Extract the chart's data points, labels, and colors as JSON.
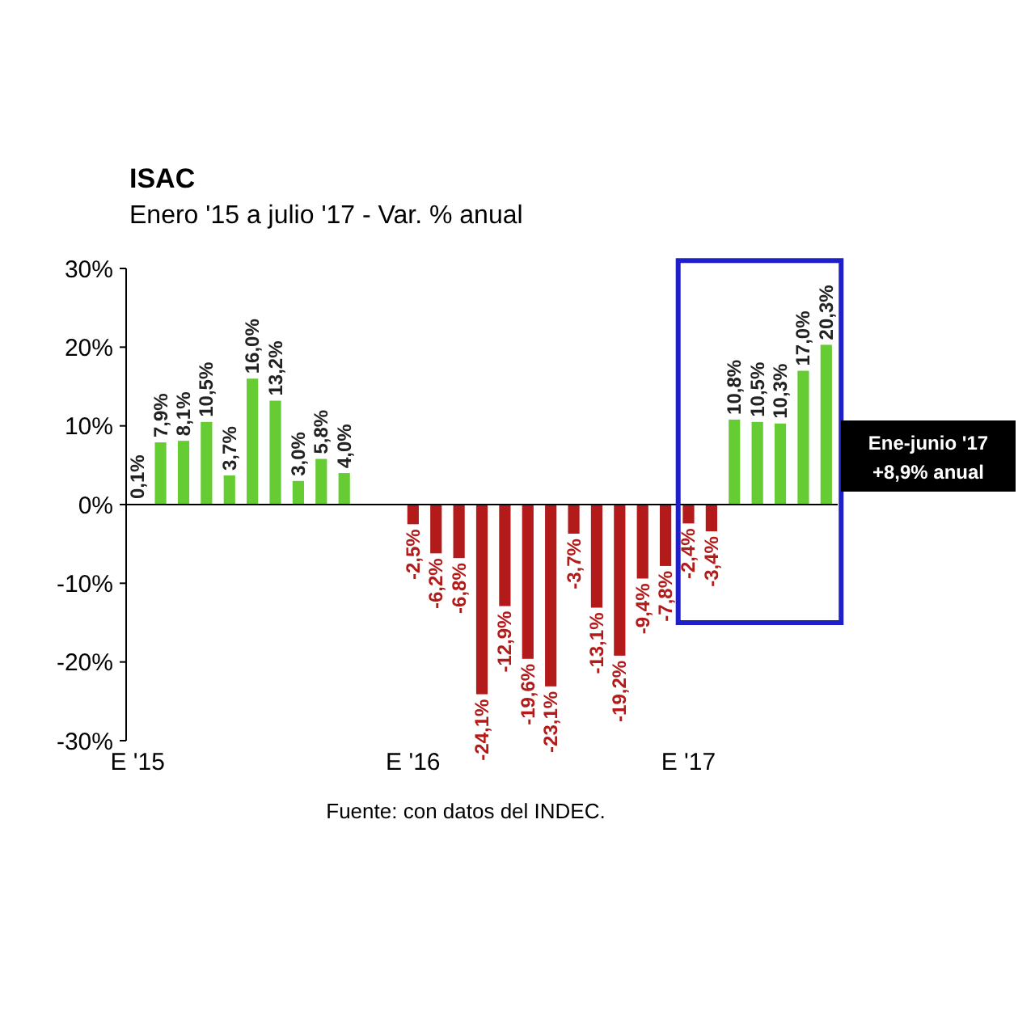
{
  "chart_data": {
    "type": "bar",
    "title": "ISAC",
    "subtitle": "Enero '15 a julio '17 - Var. % anual",
    "categories": [
      "E '15",
      null,
      null,
      null,
      null,
      null,
      null,
      null,
      null,
      null,
      null,
      null,
      "E '16",
      null,
      null,
      null,
      null,
      null,
      null,
      null,
      null,
      null,
      null,
      null,
      "E '17",
      null,
      null,
      null,
      null,
      null,
      null
    ],
    "values": [
      0.1,
      7.9,
      8.1,
      10.5,
      3.7,
      16.0,
      13.2,
      3.0,
      5.8,
      4.0,
      null,
      null,
      -2.5,
      -6.2,
      -6.8,
      -24.1,
      -12.9,
      -19.6,
      -23.1,
      -3.7,
      -13.1,
      -19.2,
      -9.4,
      -7.8,
      -2.4,
      -3.4,
      10.8,
      10.5,
      10.3,
      17.0,
      20.3
    ],
    "value_labels": [
      "0,1%",
      "7,9%",
      "8,1%",
      "10,5%",
      "3,7%",
      "16,0%",
      "13,2%",
      "3,0%",
      "5,8%",
      "4,0%",
      null,
      null,
      "-2,5%",
      "-6,2%",
      "-6,8%",
      "-24,1%",
      "-12,9%",
      "-19,6%",
      "-23,1%",
      "-3,7%",
      "-13,1%",
      "-19,2%",
      "-9,4%",
      "-7,8%",
      "-2,4%",
      "-3,4%",
      "10,8%",
      "10,5%",
      "10,3%",
      "17,0%",
      "20,3%"
    ],
    "colors": [
      "#66cc33",
      "#66cc33",
      "#66cc33",
      "#66cc33",
      "#66cc33",
      "#66cc33",
      "#66cc33",
      "#66cc33",
      "#66cc33",
      "#66cc33",
      null,
      null,
      "#b31b1b",
      "#b31b1b",
      "#b31b1b",
      "#b31b1b",
      "#b31b1b",
      "#b31b1b",
      "#b31b1b",
      "#b31b1b",
      "#b31b1b",
      "#b31b1b",
      "#b31b1b",
      "#b31b1b",
      "#b31b1b",
      "#b31b1b",
      "#66cc33",
      "#66cc33",
      "#66cc33",
      "#66cc33",
      "#66cc33"
    ],
    "ylim": [
      -30,
      30
    ],
    "yticks": [
      {
        "value": -30,
        "label": "-30%"
      },
      {
        "value": -20,
        "label": "-20%"
      },
      {
        "value": -10,
        "label": "-10%"
      },
      {
        "value": 0,
        "label": "0%"
      },
      {
        "value": 10,
        "label": "10%"
      },
      {
        "value": 20,
        "label": "20%"
      },
      {
        "value": 30,
        "label": "30%"
      }
    ],
    "annotations": [
      "Ene-junio '17",
      "+8,9% anual",
      "Fuente: con datos del INDEC."
    ]
  }
}
